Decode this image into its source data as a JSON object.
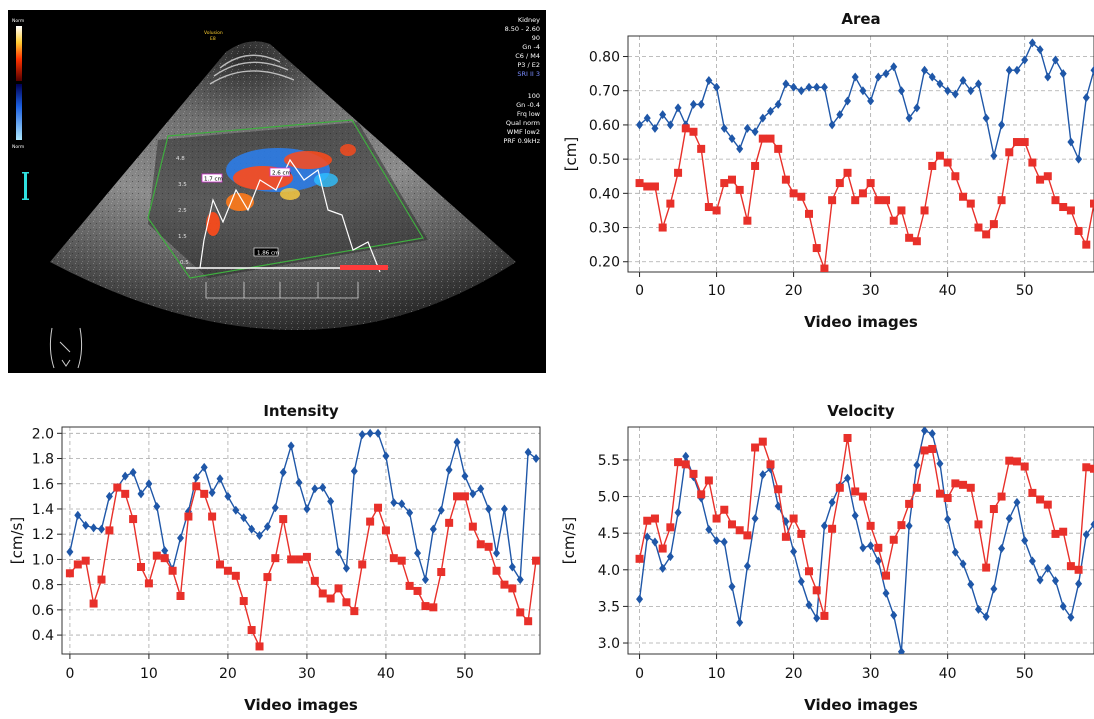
{
  "ultrasound": {
    "top_right_lines": [
      "Kidney",
      "8.50 - 2.60",
      "90",
      "Gn -4",
      "C6 / M4",
      "P3 / E2",
      "SRI II 3"
    ],
    "right_lines": [
      "100",
      "Gn -0.4",
      "Frq low",
      "Qual norm",
      "WMF low2",
      "PRF 0.9kHz"
    ],
    "left_labels": [
      "Norm",
      "Norm"
    ],
    "top_label": [
      "Volusion",
      "E8"
    ],
    "axis_marks": [
      "4.8",
      "3.5",
      "2.5",
      "1.5",
      "0.5"
    ],
    "measurements": [
      "1.7 cm",
      "2.6 cm",
      "1.86 cm"
    ],
    "colors": {
      "background": "#000000",
      "doppler_red": "#ff4a1a",
      "doppler_blue": "#2a7ff0",
      "roi": "#3fae3f"
    }
  },
  "chart_data": [
    {
      "type": "line",
      "title": "Area",
      "xlabel": "Video images",
      "ylabel": "[cm]",
      "xlim": [
        -1.5,
        59
      ],
      "ylim": [
        0.17,
        0.86
      ],
      "xticks": [
        0,
        10,
        20,
        30,
        40,
        50
      ],
      "yticks": [
        0.2,
        0.3,
        0.4,
        0.5,
        0.6,
        0.7,
        0.8
      ],
      "grid": true,
      "legend": "none",
      "series": [
        {
          "color": "#1f57a8",
          "marker": "diamond",
          "values": [
            0.6,
            0.62,
            0.59,
            0.63,
            0.6,
            0.65,
            0.6,
            0.66,
            0.66,
            0.73,
            0.71,
            0.59,
            0.56,
            0.53,
            0.59,
            0.58,
            0.62,
            0.64,
            0.66,
            0.72,
            0.71,
            0.7,
            0.71,
            0.71,
            0.71,
            0.6,
            0.63,
            0.67,
            0.74,
            0.7,
            0.67,
            0.74,
            0.75,
            0.77,
            0.7,
            0.62,
            0.65,
            0.76,
            0.74,
            0.72,
            0.7,
            0.69,
            0.73,
            0.7,
            0.72,
            0.62,
            0.51,
            0.6,
            0.76,
            0.76,
            0.79,
            0.84,
            0.82,
            0.74,
            0.79,
            0.75,
            0.55,
            0.5,
            0.68,
            0.76
          ]
        },
        {
          "color": "#e8302a",
          "marker": "square",
          "values": [
            0.43,
            0.42,
            0.42,
            0.3,
            0.37,
            0.46,
            0.59,
            0.58,
            0.53,
            0.36,
            0.35,
            0.43,
            0.44,
            0.41,
            0.32,
            0.48,
            0.56,
            0.56,
            0.53,
            0.44,
            0.4,
            0.39,
            0.34,
            0.24,
            0.18,
            0.38,
            0.43,
            0.46,
            0.38,
            0.4,
            0.43,
            0.38,
            0.38,
            0.32,
            0.35,
            0.27,
            0.26,
            0.35,
            0.48,
            0.51,
            0.49,
            0.45,
            0.39,
            0.37,
            0.3,
            0.28,
            0.31,
            0.38,
            0.52,
            0.55,
            0.55,
            0.49,
            0.44,
            0.45,
            0.38,
            0.36,
            0.35,
            0.29,
            0.25,
            0.37
          ]
        }
      ]
    },
    {
      "type": "line",
      "title": "Intensity",
      "xlabel": "Video images",
      "ylabel": "[cm/s]",
      "xlim": [
        -1,
        59.5
      ],
      "ylim": [
        0.25,
        2.05
      ],
      "xticks": [
        0,
        10,
        20,
        30,
        40,
        50
      ],
      "yticks": [
        0.4,
        0.6,
        0.8,
        1.0,
        1.2,
        1.4,
        1.6,
        1.8,
        2.0
      ],
      "grid": true,
      "legend": "none",
      "series": [
        {
          "color": "#1f57a8",
          "marker": "diamond",
          "values": [
            1.06,
            1.35,
            1.27,
            1.25,
            1.24,
            1.5,
            1.57,
            1.66,
            1.69,
            1.52,
            1.6,
            1.42,
            1.07,
            0.92,
            1.17,
            1.38,
            1.65,
            1.73,
            1.53,
            1.64,
            1.5,
            1.39,
            1.33,
            1.24,
            1.19,
            1.26,
            1.41,
            1.69,
            1.9,
            1.61,
            1.4,
            1.56,
            1.57,
            1.46,
            1.06,
            0.93,
            1.7,
            1.99,
            2.0,
            2.0,
            1.82,
            1.45,
            1.44,
            1.37,
            1.05,
            0.84,
            1.24,
            1.39,
            1.71,
            1.93,
            1.66,
            1.52,
            1.56,
            1.4,
            1.05,
            1.4,
            0.94,
            0.84,
            1.85,
            1.8
          ]
        },
        {
          "color": "#e8302a",
          "marker": "square",
          "values": [
            0.89,
            0.96,
            0.99,
            0.65,
            0.84,
            1.23,
            1.57,
            1.52,
            1.32,
            0.94,
            0.81,
            1.03,
            1.01,
            0.91,
            0.71,
            1.34,
            1.58,
            1.52,
            1.34,
            0.96,
            0.91,
            0.87,
            0.67,
            0.44,
            0.31,
            0.86,
            1.01,
            1.32,
            1.0,
            1.0,
            1.02,
            0.83,
            0.73,
            0.69,
            0.77,
            0.66,
            0.59,
            0.96,
            1.3,
            1.41,
            1.23,
            1.01,
            0.99,
            0.79,
            0.75,
            0.63,
            0.62,
            0.9,
            1.29,
            1.5,
            1.5,
            1.26,
            1.12,
            1.1,
            0.91,
            0.8,
            0.77,
            0.58,
            0.51,
            0.99
          ]
        }
      ]
    },
    {
      "type": "line",
      "title": "Velocity",
      "xlabel": "Video images",
      "ylabel": "[cm/s]",
      "xlim": [
        -1.5,
        59
      ],
      "ylim": [
        2.85,
        5.95
      ],
      "xticks": [
        0,
        10,
        20,
        30,
        40,
        50
      ],
      "yticks": [
        3.0,
        3.5,
        4.0,
        4.5,
        5.0,
        5.5
      ],
      "grid": true,
      "legend": "none",
      "series": [
        {
          "color": "#1f57a8",
          "marker": "diamond",
          "values": [
            3.6,
            4.45,
            4.38,
            4.02,
            4.18,
            4.78,
            5.55,
            5.27,
            4.98,
            4.55,
            4.4,
            4.38,
            3.77,
            3.28,
            4.05,
            4.7,
            5.3,
            5.38,
            4.87,
            4.66,
            4.25,
            3.84,
            3.52,
            3.34,
            4.6,
            4.92,
            5.15,
            5.25,
            4.74,
            4.3,
            4.33,
            4.12,
            3.68,
            3.38,
            2.88,
            4.6,
            5.43,
            5.9,
            5.86,
            5.45,
            4.69,
            4.24,
            4.08,
            3.8,
            3.46,
            3.36,
            3.74,
            4.29,
            4.7,
            4.92,
            4.4,
            4.12,
            3.86,
            4.02,
            3.85,
            3.5,
            3.35,
            3.81,
            4.48,
            4.62
          ]
        },
        {
          "color": "#e8302a",
          "marker": "square",
          "values": [
            4.15,
            4.67,
            4.7,
            4.29,
            4.58,
            5.47,
            5.44,
            5.31,
            5.03,
            5.22,
            4.7,
            4.82,
            4.62,
            4.54,
            4.47,
            5.67,
            5.75,
            5.44,
            5.1,
            4.45,
            4.7,
            4.49,
            3.98,
            3.72,
            3.37,
            4.56,
            5.12,
            5.8,
            5.07,
            5.0,
            4.6,
            4.3,
            3.92,
            4.41,
            4.61,
            4.9,
            5.12,
            5.63,
            5.65,
            5.04,
            4.98,
            5.18,
            5.16,
            5.12,
            4.62,
            4.03,
            4.83,
            5.0,
            5.49,
            5.48,
            5.41,
            5.05,
            4.96,
            4.89,
            4.49,
            4.52,
            4.05,
            4.0,
            5.4,
            5.38
          ]
        }
      ]
    }
  ]
}
